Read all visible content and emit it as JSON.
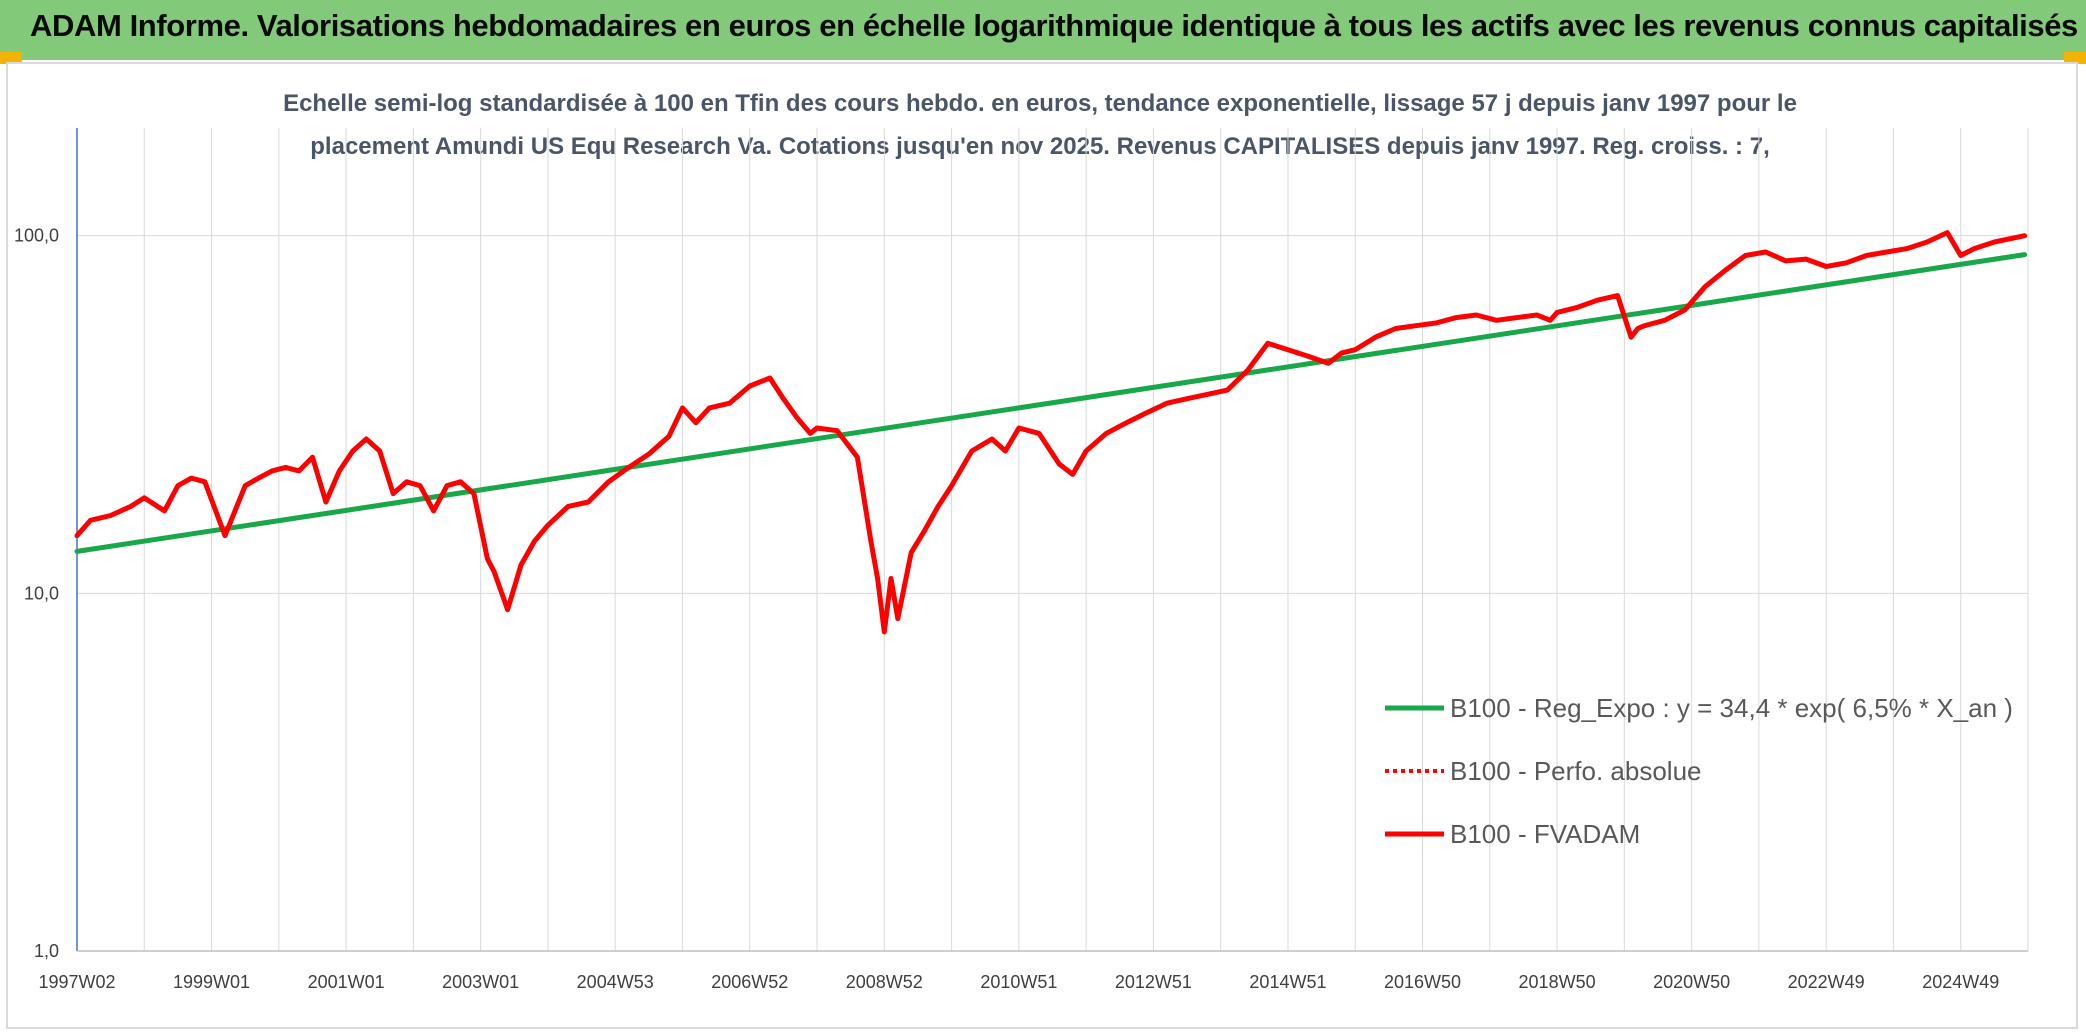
{
  "header": {
    "title": "ADAM Informe. Valorisations hebdomadaires en euros en échelle logarithmique identique à tous les actifs avec les revenus connus capitalisés"
  },
  "chart_data": {
    "type": "line",
    "title_line1": "Echelle semi-log standardisée à 100 en Tfin des cours hebdo. en euros, tendance exponentielle, lissage 57 j depuis janv 1997 pour le",
    "title_line2": "placement Amundi US Equ Research Va. Cotations jusqu'en nov 2025. Revenus CAPITALISES depuis janv 1997. Reg. croiss. : 7,",
    "y_scale": "log",
    "ylim": [
      1,
      200
    ],
    "y_ticks": [
      {
        "value": 1,
        "label": "1,0"
      },
      {
        "value": 10,
        "label": "10,0"
      },
      {
        "value": 100,
        "label": "100,0"
      }
    ],
    "xlim": [
      1997.0,
      2026.0
    ],
    "x_ticks": [
      {
        "value": 1997.0,
        "label": "1997W02"
      },
      {
        "value": 1999.0,
        "label": "1999W01"
      },
      {
        "value": 2001.0,
        "label": "2001W01"
      },
      {
        "value": 2003.0,
        "label": "2003W01"
      },
      {
        "value": 2005.0,
        "label": "2004W53"
      },
      {
        "value": 2007.0,
        "label": "2006W52"
      },
      {
        "value": 2009.0,
        "label": "2008W52"
      },
      {
        "value": 2011.0,
        "label": "2010W51"
      },
      {
        "value": 2013.0,
        "label": "2012W51"
      },
      {
        "value": 2015.0,
        "label": "2014W51"
      },
      {
        "value": 2017.0,
        "label": "2016W50"
      },
      {
        "value": 2019.0,
        "label": "2018W50"
      },
      {
        "value": 2021.0,
        "label": "2020W50"
      },
      {
        "value": 2023.0,
        "label": "2022W49"
      },
      {
        "value": 2025.0,
        "label": "2024W49"
      }
    ],
    "legend_position": "bottom-right",
    "grid": true,
    "series": [
      {
        "name": "B100 - Reg_Expo : y = 34,4 * exp( 6,5% *  X_an )",
        "color": "#18a84a",
        "style": "solid",
        "x": [
          1997.0,
          2025.95
        ],
        "y": [
          13.1,
          88.5
        ]
      },
      {
        "name": "B100 - Perfo. absolue",
        "color": "#ff0000",
        "style": "dotted",
        "x": [],
        "y": []
      },
      {
        "name": "B100 - FVADAM",
        "color": "#ff0000",
        "style": "solid",
        "x": [
          1997.0,
          1997.2,
          1997.5,
          1997.8,
          1998.0,
          1998.3,
          1998.5,
          1998.7,
          1998.9,
          1999.2,
          1999.5,
          1999.7,
          1999.9,
          2000.1,
          2000.3,
          2000.5,
          2000.7,
          2000.9,
          2001.1,
          2001.3,
          2001.5,
          2001.7,
          2001.9,
          2002.1,
          2002.3,
          2002.5,
          2002.7,
          2002.9,
          2003.1,
          2003.2,
          2003.4,
          2003.6,
          2003.8,
          2004.0,
          2004.3,
          2004.6,
          2004.9,
          2005.2,
          2005.5,
          2005.8,
          2006.0,
          2006.2,
          2006.4,
          2006.7,
          2007.0,
          2007.3,
          2007.5,
          2007.7,
          2007.9,
          2008.0,
          2008.3,
          2008.6,
          2008.8,
          2008.9,
          2009.0,
          2009.1,
          2009.2,
          2009.4,
          2009.6,
          2009.8,
          2010.0,
          2010.3,
          2010.6,
          2010.8,
          2011.0,
          2011.3,
          2011.6,
          2011.8,
          2012.0,
          2012.3,
          2012.6,
          2012.9,
          2013.2,
          2013.5,
          2013.8,
          2014.1,
          2014.4,
          2014.7,
          2015.0,
          2015.3,
          2015.6,
          2015.8,
          2016.0,
          2016.3,
          2016.6,
          2016.9,
          2017.2,
          2017.5,
          2017.8,
          2018.1,
          2018.4,
          2018.7,
          2018.9,
          2019.0,
          2019.3,
          2019.6,
          2019.9,
          2020.1,
          2020.2,
          2020.3,
          2020.6,
          2020.9,
          2021.2,
          2021.5,
          2021.8,
          2022.1,
          2022.4,
          2022.7,
          2023.0,
          2023.3,
          2023.6,
          2023.9,
          2024.2,
          2024.5,
          2024.8,
          2025.0,
          2025.2,
          2025.5,
          2025.95
        ],
        "y": [
          14.5,
          16.0,
          16.5,
          17.5,
          18.5,
          17.0,
          20.0,
          21.0,
          20.5,
          14.5,
          20.0,
          21.0,
          22.0,
          22.5,
          22.0,
          24.0,
          18.0,
          22.0,
          25.0,
          27.0,
          25.0,
          19.0,
          20.5,
          20.0,
          17.0,
          20.0,
          20.5,
          19.0,
          12.5,
          11.5,
          9.0,
          12.0,
          14.0,
          15.5,
          17.5,
          18.0,
          20.5,
          22.5,
          24.5,
          27.5,
          33.0,
          30.0,
          33.0,
          34.0,
          38.0,
          40.0,
          35.0,
          31.0,
          28.0,
          29.0,
          28.5,
          24.0,
          14.0,
          11.0,
          7.8,
          11.0,
          8.5,
          13.0,
          15.0,
          17.5,
          20.0,
          25.0,
          27.0,
          25.0,
          29.0,
          28.0,
          23.0,
          21.5,
          25.0,
          28.0,
          30.0,
          32.0,
          34.0,
          35.0,
          36.0,
          37.0,
          42.0,
          50.0,
          48.0,
          46.0,
          44.0,
          47.0,
          48.0,
          52.0,
          55.0,
          56.0,
          57.0,
          59.0,
          60.0,
          58.0,
          59.0,
          60.0,
          58.0,
          61.0,
          63.0,
          66.0,
          68.0,
          52.0,
          55.0,
          56.0,
          58.0,
          62.0,
          72.0,
          80.0,
          88.0,
          90.0,
          85.0,
          86.0,
          82.0,
          84.0,
          88.0,
          90.0,
          92.0,
          96.0,
          102.0,
          88.0,
          92.0,
          96.0,
          100.0
        ]
      }
    ]
  }
}
